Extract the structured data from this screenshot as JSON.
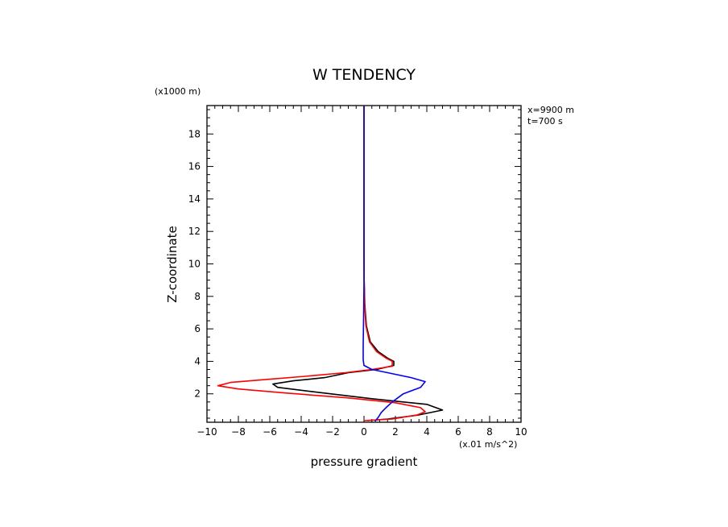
{
  "chart_data": {
    "type": "line",
    "title": "W TENDENCY",
    "xlabel": "pressure gradient",
    "ylabel": "Z-coordinate",
    "x_unit": "(x.01 m/s^2)",
    "y_unit": "(x1000 m)",
    "info": [
      "x=9900 m",
      "t=700 s"
    ],
    "xlim": [
      -10,
      10
    ],
    "ylim": [
      0.25,
      19.75
    ],
    "xticks": [
      -10,
      -8,
      -6,
      -4,
      -2,
      0,
      2,
      4,
      6,
      8,
      10
    ],
    "yticks": [
      2,
      4,
      6,
      8,
      10,
      12,
      14,
      16,
      18
    ],
    "grid": false,
    "series": [
      {
        "color": "#000000",
        "points": [
          [
            0.2,
            0.35
          ],
          [
            1.5,
            0.45
          ],
          [
            3.5,
            0.7
          ],
          [
            5.0,
            1.0
          ],
          [
            4.0,
            1.35
          ],
          [
            0.5,
            1.7
          ],
          [
            -3.0,
            2.1
          ],
          [
            -5.5,
            2.4
          ],
          [
            -5.8,
            2.6
          ],
          [
            -4.5,
            2.8
          ],
          [
            -2.5,
            3.0
          ],
          [
            -1.0,
            3.3
          ],
          [
            0.8,
            3.5
          ],
          [
            1.9,
            3.75
          ],
          [
            1.9,
            4.0
          ],
          [
            1.5,
            4.2
          ],
          [
            0.9,
            4.6
          ],
          [
            0.4,
            5.2
          ],
          [
            0.15,
            6.2
          ],
          [
            0.05,
            7.5
          ],
          [
            0.01,
            9.0
          ],
          [
            0.0,
            11.0
          ],
          [
            0.0,
            14.0
          ],
          [
            0.0,
            17.0
          ],
          [
            0.0,
            19.7
          ]
        ]
      },
      {
        "color": "#ff0000",
        "points": [
          [
            0.0,
            0.3
          ],
          [
            0.0,
            0.35
          ],
          [
            1.8,
            0.45
          ],
          [
            3.4,
            0.7
          ],
          [
            3.9,
            0.9
          ],
          [
            3.6,
            1.15
          ],
          [
            2.0,
            1.45
          ],
          [
            -1.0,
            1.75
          ],
          [
            -5.0,
            2.05
          ],
          [
            -8.0,
            2.3
          ],
          [
            -9.3,
            2.5
          ],
          [
            -8.5,
            2.7
          ],
          [
            -6.0,
            2.9
          ],
          [
            -3.5,
            3.1
          ],
          [
            -1.2,
            3.3
          ],
          [
            0.5,
            3.5
          ],
          [
            1.8,
            3.7
          ],
          [
            1.8,
            4.0
          ],
          [
            1.4,
            4.2
          ],
          [
            0.8,
            4.6
          ],
          [
            0.35,
            5.2
          ],
          [
            0.12,
            6.2
          ],
          [
            0.04,
            7.5
          ],
          [
            0.01,
            9.0
          ],
          [
            0.0,
            11.0
          ],
          [
            0.0,
            14.0
          ],
          [
            0.0,
            17.0
          ],
          [
            0.0,
            19.7
          ]
        ]
      },
      {
        "color": "#0000ff",
        "points": [
          [
            0.7,
            0.3
          ],
          [
            0.9,
            0.55
          ],
          [
            1.1,
            0.85
          ],
          [
            1.4,
            1.15
          ],
          [
            1.8,
            1.5
          ],
          [
            2.5,
            2.0
          ],
          [
            3.6,
            2.4
          ],
          [
            3.9,
            2.75
          ],
          [
            3.0,
            3.0
          ],
          [
            1.5,
            3.3
          ],
          [
            0.5,
            3.5
          ],
          [
            0.0,
            3.75
          ],
          [
            -0.05,
            4.1
          ],
          [
            -0.05,
            5.0
          ],
          [
            -0.02,
            7.0
          ],
          [
            0.0,
            9.0
          ],
          [
            0.0,
            11.0
          ],
          [
            0.0,
            14.0
          ],
          [
            0.0,
            17.0
          ],
          [
            0.0,
            19.7
          ]
        ]
      }
    ]
  }
}
